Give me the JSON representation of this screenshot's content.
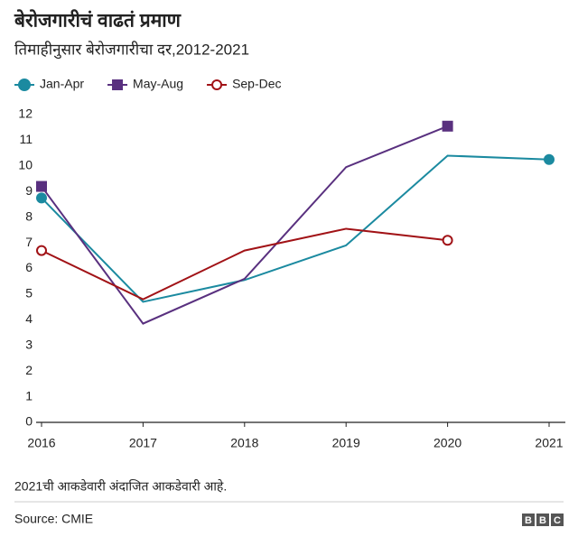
{
  "chart_data": {
    "type": "line",
    "title": "बेरोजगारीचं वाढतं प्रमाण",
    "subtitle": "तिमाहीनुसार बेरोजगारीचा दर,2012-2021",
    "x": [
      2016,
      2017,
      2018,
      2019,
      2020,
      2021
    ],
    "series": [
      {
        "name": "Jan-Apr",
        "color": "#1b8aa0",
        "marker": "circle",
        "values": [
          8.75,
          4.7,
          5.55,
          6.9,
          10.4,
          10.25
        ]
      },
      {
        "name": "May-Aug",
        "color": "#59307f",
        "marker": "square",
        "values": [
          9.2,
          3.85,
          5.6,
          9.95,
          11.55,
          null
        ]
      },
      {
        "name": "Sep-Dec",
        "color": "#a11216",
        "marker": "open-circle",
        "values": [
          6.7,
          4.8,
          6.7,
          7.55,
          7.1,
          null
        ]
      }
    ],
    "xlim": [
      2016,
      2021
    ],
    "xticks": [
      2016,
      2017,
      2018,
      2019,
      2020,
      2021
    ],
    "ylim": [
      0,
      12
    ],
    "yticks": [
      0,
      1,
      2,
      3,
      4,
      5,
      6,
      7,
      8,
      9,
      10,
      11,
      12
    ],
    "grid": false,
    "note": "2021ची आकडेवारी अंदाजित आकडेवारी आहे.",
    "source": "Source: CMIE",
    "logo": [
      "B",
      "B",
      "C"
    ]
  }
}
